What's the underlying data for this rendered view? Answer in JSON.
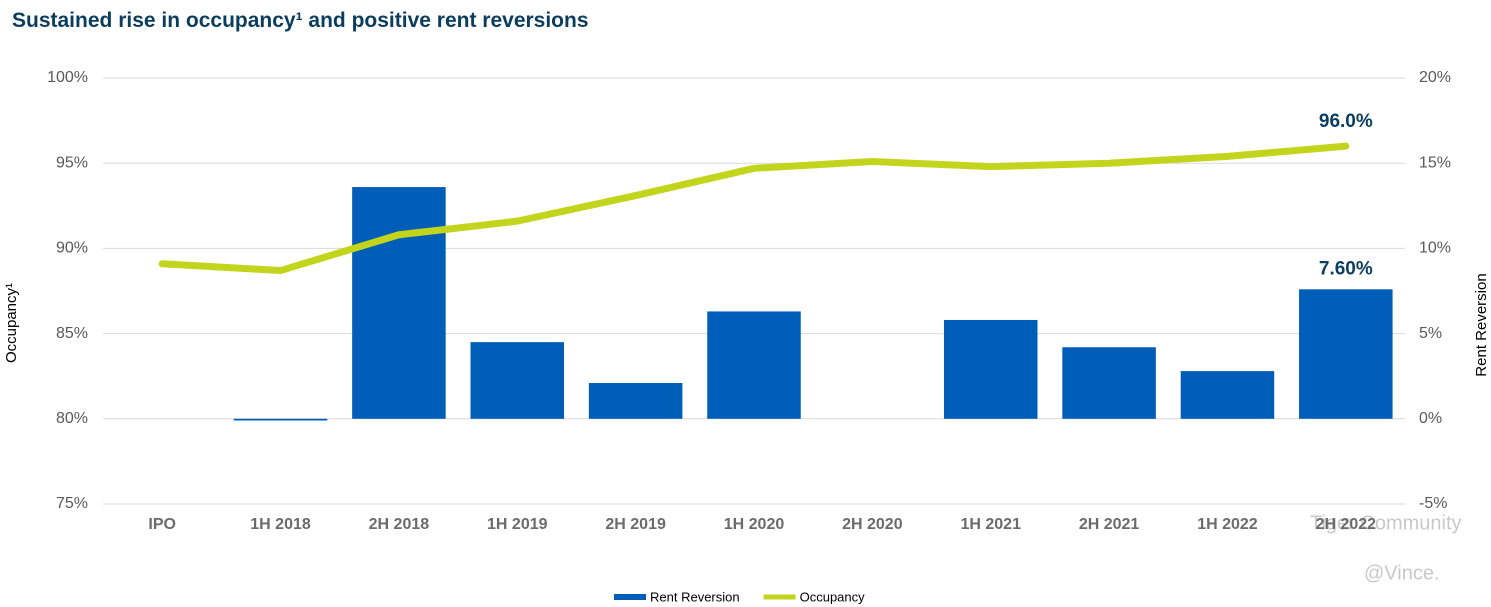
{
  "chart_data": {
    "type": "bar",
    "title": "Sustained rise in occupancy¹ and positive rent reversions",
    "ylabel": "Occupancy¹",
    "y2label": "Rent Reversion",
    "categories": [
      "IPO",
      "1H 2018",
      "2H 2018",
      "1H 2019",
      "2H 2019",
      "1H 2020",
      "2H 2020",
      "1H 2021",
      "2H 2021",
      "1H 2022",
      "2H 2022"
    ],
    "series": [
      {
        "name": "Rent Reversion",
        "type": "bar",
        "axis": "y2",
        "color": "#005eb8",
        "values": [
          null,
          -0.1,
          13.6,
          4.5,
          2.1,
          6.3,
          null,
          5.8,
          4.2,
          2.8,
          7.6
        ],
        "value_labels": [
          null,
          null,
          null,
          null,
          null,
          null,
          null,
          null,
          null,
          null,
          "7.60%"
        ]
      },
      {
        "name": "Occupancy",
        "type": "line",
        "color": "#c2d51c",
        "values": [
          89.1,
          88.7,
          90.8,
          91.6,
          93.1,
          94.7,
          95.1,
          94.8,
          95.0,
          95.4,
          96.0
        ],
        "value_labels": [
          null,
          null,
          null,
          null,
          null,
          null,
          null,
          null,
          null,
          null,
          "96.0%"
        ]
      }
    ],
    "ylim": [
      75,
      100
    ],
    "yticks": [
      {
        "value": 75,
        "label": "75%"
      },
      {
        "value": 80,
        "label": "80%"
      },
      {
        "value": 85,
        "label": "85%"
      },
      {
        "value": 90,
        "label": "90%"
      },
      {
        "value": 95,
        "label": "95%"
      },
      {
        "value": 100,
        "label": "100%"
      }
    ],
    "y2lim": [
      -5,
      20
    ],
    "y2ticks": [
      {
        "value": -5,
        "label": "-5%"
      },
      {
        "value": 0,
        "label": "0%"
      },
      {
        "value": 5,
        "label": "5%"
      },
      {
        "value": 10,
        "label": "10%"
      },
      {
        "value": 15,
        "label": "15%"
      },
      {
        "value": 20,
        "label": "20%"
      }
    ],
    "grid": true,
    "legend": "bottom",
    "watermark": [
      "Tiger Community",
      "@Vince."
    ]
  }
}
